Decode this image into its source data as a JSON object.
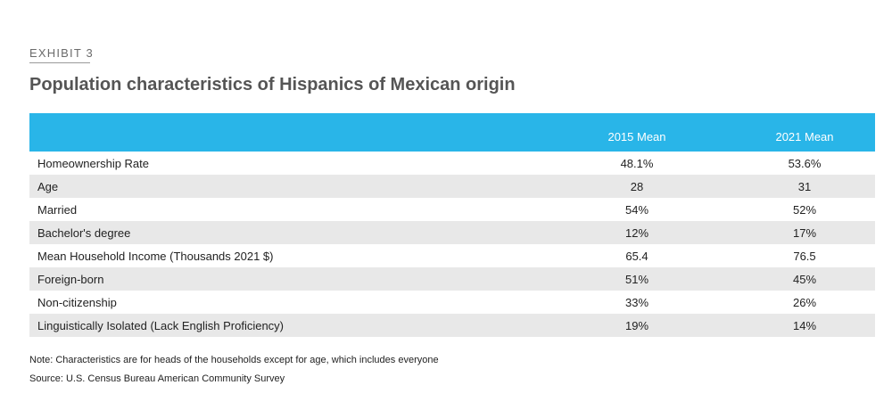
{
  "exhibit_label": "EXHIBIT 3",
  "title": "Population characteristics of Hispanics of Mexican origin",
  "chart_data": {
    "type": "table",
    "title": "Population characteristics of Hispanics of Mexican origin",
    "columns": [
      "",
      "2015 Mean",
      "2021 Mean"
    ],
    "rows": [
      [
        "Homeownership Rate",
        "48.1%",
        "53.6%"
      ],
      [
        "Age",
        "28",
        "31"
      ],
      [
        "Married",
        "54%",
        "52%"
      ],
      [
        "Bachelor's degree",
        "12%",
        "17%"
      ],
      [
        "Mean Household Income (Thousands 2021 $)",
        "65.4",
        "76.5"
      ],
      [
        "Foreign-born",
        "51%",
        "45%"
      ],
      [
        "Non-citizenship",
        "33%",
        "26%"
      ],
      [
        "Linguistically Isolated (Lack English Proficiency)",
        "19%",
        "14%"
      ]
    ]
  },
  "note": "Note: Characteristics are for heads of the households except for age, which includes everyone",
  "source": "Source: U.S. Census Bureau American Community Survey",
  "colors": {
    "header_bg": "#29b5e8",
    "stripe_bg": "#e8e8e8"
  }
}
